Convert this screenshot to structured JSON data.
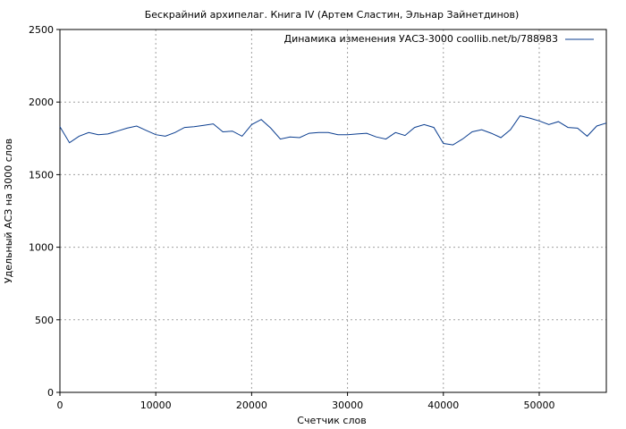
{
  "chart_data": {
    "type": "line",
    "title": "Бескрайний архипелаг. Книга IV (Артем Сластин, Эльнар Зайнетдинов)",
    "xlabel": "Счетчик слов",
    "ylabel": "Удельный АСЗ на 3000 слов",
    "xlim": [
      0,
      57000
    ],
    "ylim": [
      0,
      2500
    ],
    "x_ticks": [
      0,
      10000,
      20000,
      30000,
      40000,
      50000
    ],
    "y_ticks": [
      0,
      500,
      1000,
      1500,
      2000,
      2500
    ],
    "grid": true,
    "legend_position": "top-right",
    "series": [
      {
        "name": "Динамика изменения УАСЗ-3000 coollib.net/b/788983",
        "color": "#0a3d8f",
        "x": [
          0,
          1000,
          2000,
          3000,
          4000,
          5000,
          6000,
          7000,
          8000,
          9000,
          10000,
          11000,
          12000,
          13000,
          14000,
          15000,
          16000,
          17000,
          18000,
          19000,
          20000,
          21000,
          22000,
          23000,
          24000,
          25000,
          26000,
          27000,
          28000,
          29000,
          30000,
          31000,
          32000,
          33000,
          34000,
          35000,
          36000,
          37000,
          38000,
          39000,
          40000,
          41000,
          42000,
          43000,
          44000,
          45000,
          46000,
          47000,
          48000,
          49000,
          50000,
          51000,
          52000,
          53000,
          54000,
          55000,
          56000,
          57000
        ],
        "values": [
          1830,
          1720,
          1765,
          1790,
          1775,
          1780,
          1800,
          1820,
          1835,
          1805,
          1775,
          1765,
          1790,
          1825,
          1830,
          1840,
          1850,
          1795,
          1800,
          1765,
          1845,
          1880,
          1820,
          1745,
          1760,
          1755,
          1785,
          1790,
          1790,
          1775,
          1775,
          1780,
          1785,
          1760,
          1745,
          1790,
          1770,
          1825,
          1845,
          1825,
          1715,
          1705,
          1745,
          1795,
          1810,
          1785,
          1755,
          1810,
          1905,
          1890,
          1870,
          1845,
          1865,
          1825,
          1820,
          1765,
          1835,
          1855
        ]
      }
    ]
  }
}
